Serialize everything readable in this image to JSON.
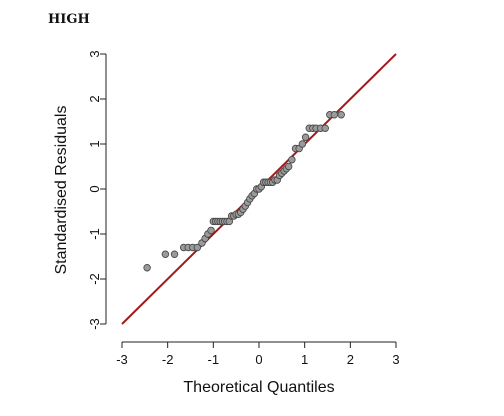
{
  "page": {
    "title": "HIGH"
  },
  "chart_data": {
    "type": "scatter",
    "xlabel": "Theoretical Quantiles",
    "ylabel": "Standardised Residuals",
    "xlim": [
      -3,
      3
    ],
    "ylim": [
      -3,
      3
    ],
    "x_ticks": [
      "-3",
      "-2",
      "-1",
      "0",
      "1",
      "2",
      "3"
    ],
    "y_ticks": [
      "-3",
      "-2",
      "-1",
      "0",
      "1",
      "2",
      "3"
    ],
    "grid": false,
    "colors": {
      "points_fill": "#9a9a9a",
      "points_stroke": "#444444",
      "line": "#a31a1a",
      "axis": "#222222"
    },
    "reference_line": {
      "from": [
        -3,
        -3
      ],
      "to": [
        3,
        3
      ]
    },
    "points": {
      "x": [
        -2.45,
        -2.05,
        -1.85,
        -1.65,
        -1.55,
        -1.45,
        -1.35,
        -1.25,
        -1.18,
        -1.12,
        -1.05,
        -1.0,
        -0.95,
        -0.9,
        -0.85,
        -0.8,
        -0.75,
        -0.7,
        -0.65,
        -0.6,
        -0.55,
        -0.5,
        -0.45,
        -0.4,
        -0.35,
        -0.3,
        -0.25,
        -0.2,
        -0.15,
        -0.1,
        -0.05,
        0.0,
        0.05,
        0.1,
        0.15,
        0.2,
        0.25,
        0.3,
        0.35,
        0.4,
        0.45,
        0.5,
        0.55,
        0.6,
        0.65,
        0.72,
        0.8,
        0.88,
        0.95,
        1.02,
        1.1,
        1.18,
        1.25,
        1.35,
        1.45,
        1.55,
        1.65,
        1.8
      ],
      "y": [
        -1.75,
        -1.45,
        -1.45,
        -1.3,
        -1.3,
        -1.3,
        -1.3,
        -1.2,
        -1.1,
        -1.0,
        -0.92,
        -0.72,
        -0.72,
        -0.72,
        -0.72,
        -0.72,
        -0.72,
        -0.72,
        -0.72,
        -0.6,
        -0.6,
        -0.56,
        -0.56,
        -0.52,
        -0.45,
        -0.38,
        -0.3,
        -0.22,
        -0.15,
        -0.1,
        0.0,
        0.0,
        0.05,
        0.15,
        0.15,
        0.15,
        0.15,
        0.15,
        0.2,
        0.2,
        0.3,
        0.35,
        0.4,
        0.45,
        0.5,
        0.65,
        0.9,
        0.9,
        1.0,
        1.15,
        1.35,
        1.35,
        1.35,
        1.35,
        1.35,
        1.65,
        1.65,
        1.65
      ]
    }
  }
}
